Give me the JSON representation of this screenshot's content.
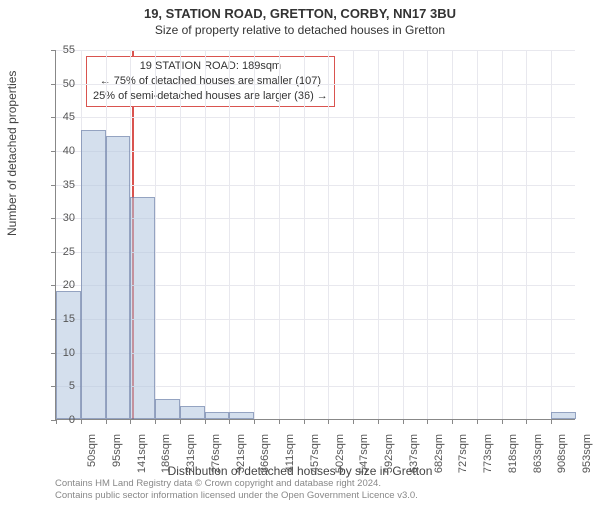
{
  "titles": {
    "line1": "19, STATION ROAD, GRETTON, CORBY, NN17 3BU",
    "line2": "Size of property relative to detached houses in Gretton"
  },
  "axes": {
    "ylabel": "Number of detached properties",
    "xlabel": "Distribution of detached houses by size in Gretton",
    "ylim": [
      0,
      55
    ],
    "ytick_step": 5,
    "yticks": [
      0,
      5,
      10,
      15,
      20,
      25,
      30,
      35,
      40,
      45,
      50,
      55
    ],
    "xticks_labels": [
      "50sqm",
      "95sqm",
      "141sqm",
      "186sqm",
      "231sqm",
      "276sqm",
      "321sqm",
      "366sqm",
      "411sqm",
      "457sqm",
      "502sqm",
      "547sqm",
      "592sqm",
      "637sqm",
      "682sqm",
      "727sqm",
      "773sqm",
      "818sqm",
      "863sqm",
      "908sqm",
      "953sqm"
    ],
    "xlim": [
      50,
      953
    ],
    "label_fontsize": 12
  },
  "chart": {
    "type": "histogram",
    "background_color": "#ffffff",
    "grid_color": "#e8e8ee",
    "axis_color": "#888888",
    "bar_color": "rgba(176,196,222,0.55)",
    "bar_border_color": "rgba(70,90,140,0.45)",
    "marker_line_color": "#d9534f",
    "marker_line_x": 189,
    "bars": [
      {
        "x": 50,
        "count": 19
      },
      {
        "x": 95,
        "count": 43
      },
      {
        "x": 141,
        "count": 42
      },
      {
        "x": 186,
        "count": 33
      },
      {
        "x": 231,
        "count": 3
      },
      {
        "x": 276,
        "count": 2
      },
      {
        "x": 321,
        "count": 1
      },
      {
        "x": 366,
        "count": 1
      },
      {
        "x": 411,
        "count": 0
      },
      {
        "x": 457,
        "count": 0
      },
      {
        "x": 502,
        "count": 0
      },
      {
        "x": 547,
        "count": 0
      },
      {
        "x": 592,
        "count": 0
      },
      {
        "x": 637,
        "count": 0
      },
      {
        "x": 682,
        "count": 0
      },
      {
        "x": 727,
        "count": 0
      },
      {
        "x": 773,
        "count": 0
      },
      {
        "x": 818,
        "count": 0
      },
      {
        "x": 863,
        "count": 0
      },
      {
        "x": 908,
        "count": 0
      },
      {
        "x": 953,
        "count": 1
      }
    ]
  },
  "infobox": {
    "line1": "19 STATION ROAD: 189sqm",
    "line2": "← 75% of detached houses are smaller (107)",
    "line3": "25% of semi-detached houses are larger (36) →",
    "border_color": "#d9534f",
    "background_color": "#ffffff"
  },
  "footer": {
    "line1": "Contains HM Land Registry data © Crown copyright and database right 2024.",
    "line2": "Contains public sector information licensed under the Open Government Licence v3.0."
  }
}
